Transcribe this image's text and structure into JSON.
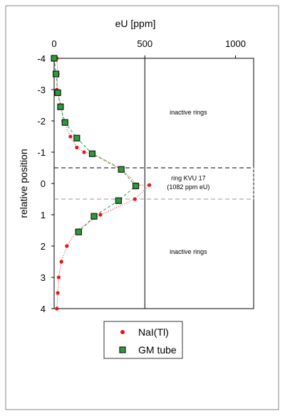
{
  "chart_data": {
    "type": "scatter",
    "xlabel": "eU [ppm]",
    "ylabel": "relative position",
    "xlim": [
      0,
      1100
    ],
    "ylim": [
      -4,
      4
    ],
    "y_inverted": true,
    "x_axis_position": "top",
    "x_ticks": [
      0,
      500,
      1000
    ],
    "x_tick_labels": [
      "0",
      "500",
      "1000"
    ],
    "y_ticks": [
      -4,
      -3,
      -2,
      -1,
      0,
      1,
      2,
      3,
      4
    ],
    "y_tick_labels": [
      "-4",
      "-3",
      "-2",
      "-1",
      "0",
      "1",
      "2",
      "3",
      "4"
    ],
    "reference_line_x": 500,
    "band": {
      "y_from": -0.5,
      "y_to": 0.5
    },
    "grid": false,
    "legend_position": "bottom",
    "series": [
      {
        "name": "NaI(Tl)",
        "color": "#e8141b",
        "marker": "circle",
        "line": "dotted",
        "x": [
          15,
          20,
          15,
          38,
          50,
          90,
          125,
          165,
          215,
          375,
          460,
          525,
          445,
          255,
          125,
          70,
          40,
          25,
          20,
          15
        ],
        "y": [
          -4,
          -3.5,
          -3,
          -2.5,
          -2,
          -1.5,
          -1.15,
          -1,
          -0.95,
          -0.45,
          0.05,
          0.05,
          0.5,
          1,
          1.5,
          2,
          2.5,
          3,
          3.5,
          4
        ]
      },
      {
        "name": "GM tube",
        "color": "#2e9a3e",
        "marker": "square",
        "line": "dashed",
        "x": [
          0,
          10,
          20,
          35,
          60,
          125,
          210,
          370,
          450,
          355,
          220,
          135
        ],
        "y": [
          -4,
          -3.5,
          -2.9,
          -2.45,
          -1.95,
          -1.45,
          -0.95,
          -0.45,
          0.08,
          0.55,
          1.05,
          1.55
        ]
      }
    ],
    "annotations": [
      {
        "text": "inactive rings",
        "x": 740,
        "y": -2.2
      },
      {
        "text": "ring KVU 17",
        "x": 740,
        "y": -0.1
      },
      {
        "text": "(1082 ppm eU)",
        "x": 740,
        "y": 0.18
      },
      {
        "text": "inactive rings",
        "x": 740,
        "y": 2.25
      }
    ]
  }
}
